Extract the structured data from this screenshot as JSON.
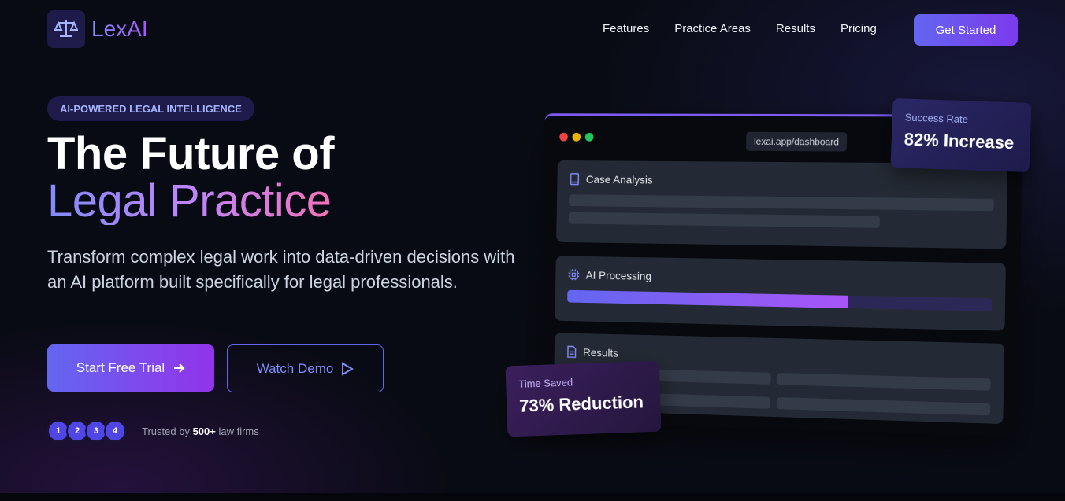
{
  "brand": {
    "name": "LexAI",
    "icon": "scale-icon"
  },
  "nav": {
    "items": [
      "Features",
      "Practice Areas",
      "Results",
      "Pricing"
    ],
    "cta": "Get Started"
  },
  "hero": {
    "badge": "AI-POWERED LEGAL INTELLIGENCE",
    "title_line1": "The Future of",
    "title_line2": "Legal Practice",
    "description": "Transform complex legal work into data-driven decisions with an AI platform built specifically for legal professionals.",
    "primary_button": "Start Free Trial",
    "secondary_button": "Watch Demo",
    "avatars": [
      "1",
      "2",
      "3",
      "4"
    ],
    "trust_prefix": "Trusted by",
    "trust_count": "500+",
    "trust_suffix": "law firms"
  },
  "dashboard": {
    "url": "lexai.app/dashboard",
    "cards": [
      {
        "title": "Case Analysis",
        "icon": "book-icon"
      },
      {
        "title": "AI Processing",
        "icon": "cpu-icon",
        "progress_percent": 67
      },
      {
        "title": "Results",
        "icon": "document-icon"
      }
    ]
  },
  "stats": [
    {
      "label": "Success Rate",
      "value": "82% Increase"
    },
    {
      "label": "Time Saved",
      "value": "73% Reduction"
    }
  ],
  "colors": {
    "accent": "#6366f1",
    "purple": "#a855f7",
    "background": "#090b14"
  }
}
